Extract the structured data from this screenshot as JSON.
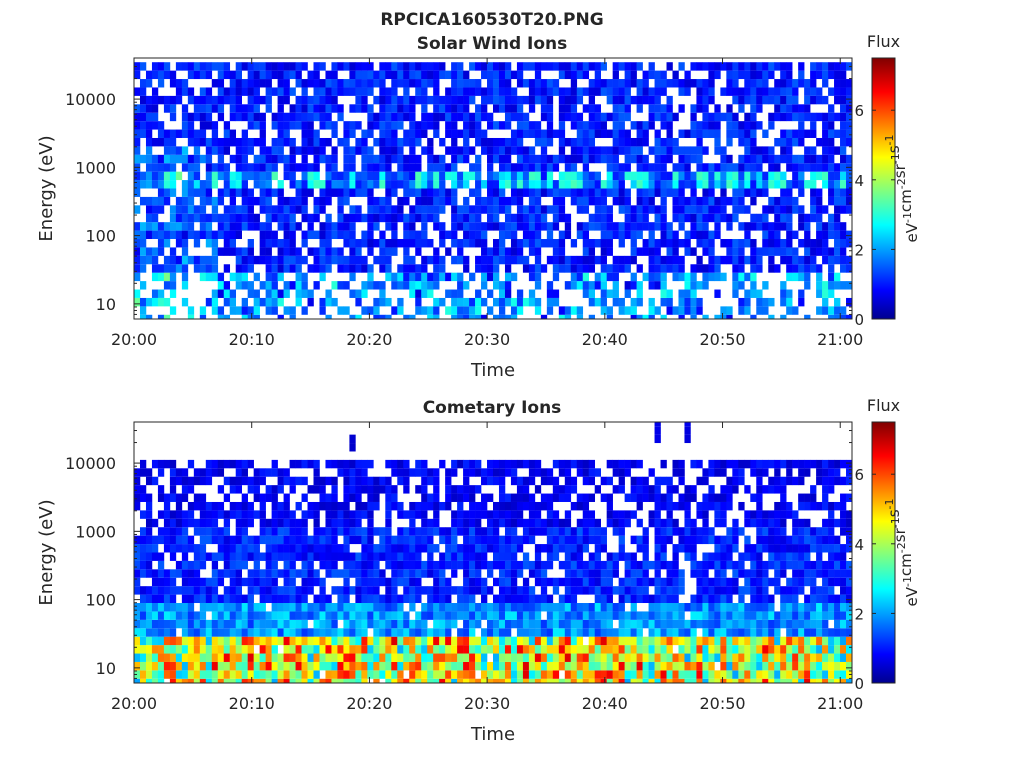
{
  "figure": {
    "filename": "RPCICA160530T20.PNG"
  },
  "colormap": {
    "name": "jet",
    "stops": [
      "#00008f",
      "#0000ff",
      "#00ffff",
      "#ffff00",
      "#ff0000",
      "#800000"
    ]
  },
  "chart_data": [
    {
      "type": "heatmap",
      "title": "Solar Wind Ions",
      "xlabel": "Time",
      "ylabel": "Energy (eV)",
      "x_ticks": [
        "20:00",
        "20:10",
        "20:20",
        "20:30",
        "20:40",
        "20:50",
        "21:00"
      ],
      "x_range": [
        "20:00",
        "21:01"
      ],
      "y_scale": "log",
      "y_ticks": [
        10,
        100,
        1000,
        10000
      ],
      "y_tick_labels": [
        "10",
        "100",
        "1000",
        "10000"
      ],
      "y_range": [
        6,
        40000
      ],
      "colorbar": {
        "title": "Flux",
        "label": "eV",
        "label_parts": [
          "eV",
          "-1",
          "cm",
          "-2",
          "sr",
          "-1",
          "s",
          "-1"
        ],
        "range": [
          0,
          7.5
        ],
        "ticks": [
          0,
          2,
          4,
          6
        ],
        "tick_labels": [
          "0",
          "2",
          "4",
          "6"
        ]
      },
      "dominant_flux": "low (0-1.5) across most energies; enhanced ~2-3.5 near 700 eV and at lowest energies with many empty bins",
      "seed": 7,
      "profile": "solar"
    },
    {
      "type": "heatmap",
      "title": "Cometary Ions",
      "xlabel": "Time",
      "ylabel": "Energy (eV)",
      "x_ticks": [
        "20:00",
        "20:10",
        "20:20",
        "20:30",
        "20:40",
        "20:50",
        "21:00"
      ],
      "x_range": [
        "20:00",
        "21:01"
      ],
      "y_scale": "log",
      "y_ticks": [
        10,
        100,
        1000,
        10000
      ],
      "y_tick_labels": [
        "10",
        "100",
        "1000",
        "10000"
      ],
      "y_range": [
        6,
        40000
      ],
      "colorbar": {
        "title": "Flux",
        "label": "eV",
        "label_parts": [
          "eV",
          "-1",
          "cm",
          "-2",
          "sr",
          "-1",
          "s",
          "-1"
        ],
        "range": [
          0,
          7.5
        ],
        "ticks": [
          0,
          2,
          4,
          6
        ],
        "tick_labels": [
          "0",
          "2",
          "4",
          "6"
        ]
      },
      "dominant_flux": "high (4-7) below ~25 eV, decreasing to ~1 above 100 eV; mostly empty above ~11000 eV",
      "seed": 19,
      "profile": "cometary"
    }
  ]
}
